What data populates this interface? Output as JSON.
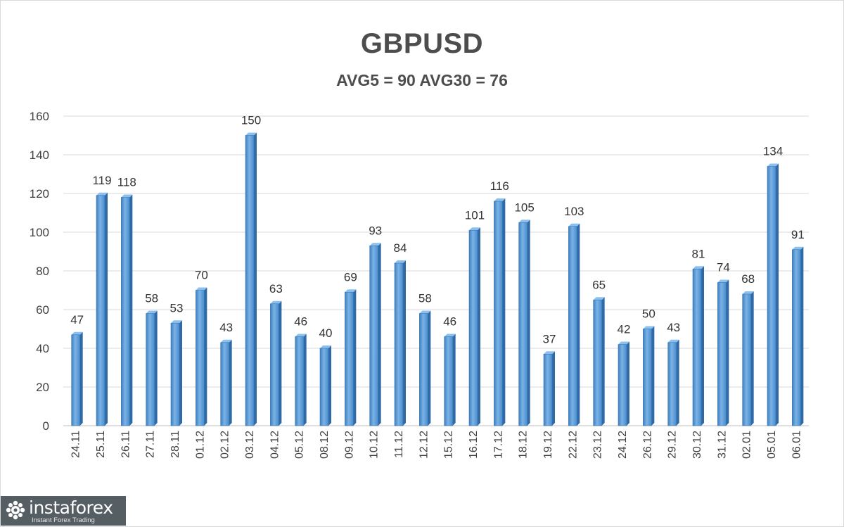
{
  "chart_data": {
    "type": "bar",
    "title": "GBPUSD",
    "subtitle": "AVG5 = 90 AVG30 = 76",
    "categories": [
      "24.11",
      "25.11",
      "26.11",
      "27.11",
      "28.11",
      "01.12",
      "02.12",
      "03.12",
      "04.12",
      "05.12",
      "08.12",
      "09.12",
      "10.12",
      "11.12",
      "12.12",
      "15.12",
      "16.12",
      "17.12",
      "18.12",
      "19.12",
      "22.12",
      "23.12",
      "24.12",
      "26.12",
      "29.12",
      "30.12",
      "31.12",
      "02.01",
      "05.01",
      "06.01"
    ],
    "values": [
      47,
      119,
      118,
      58,
      53,
      70,
      43,
      150,
      63,
      46,
      40,
      69,
      93,
      84,
      58,
      46,
      101,
      116,
      105,
      37,
      103,
      65,
      42,
      50,
      43,
      81,
      74,
      68,
      134,
      91
    ],
    "ylim": [
      0,
      160
    ],
    "yticks": [
      "0",
      "20",
      "40",
      "60",
      "80",
      "100",
      "120",
      "140",
      "160"
    ],
    "grid": true,
    "bar_color": "#5b9bd5",
    "data_labels": true
  },
  "watermark": {
    "brand": "instaforex",
    "tagline": "Instant Forex Trading"
  }
}
